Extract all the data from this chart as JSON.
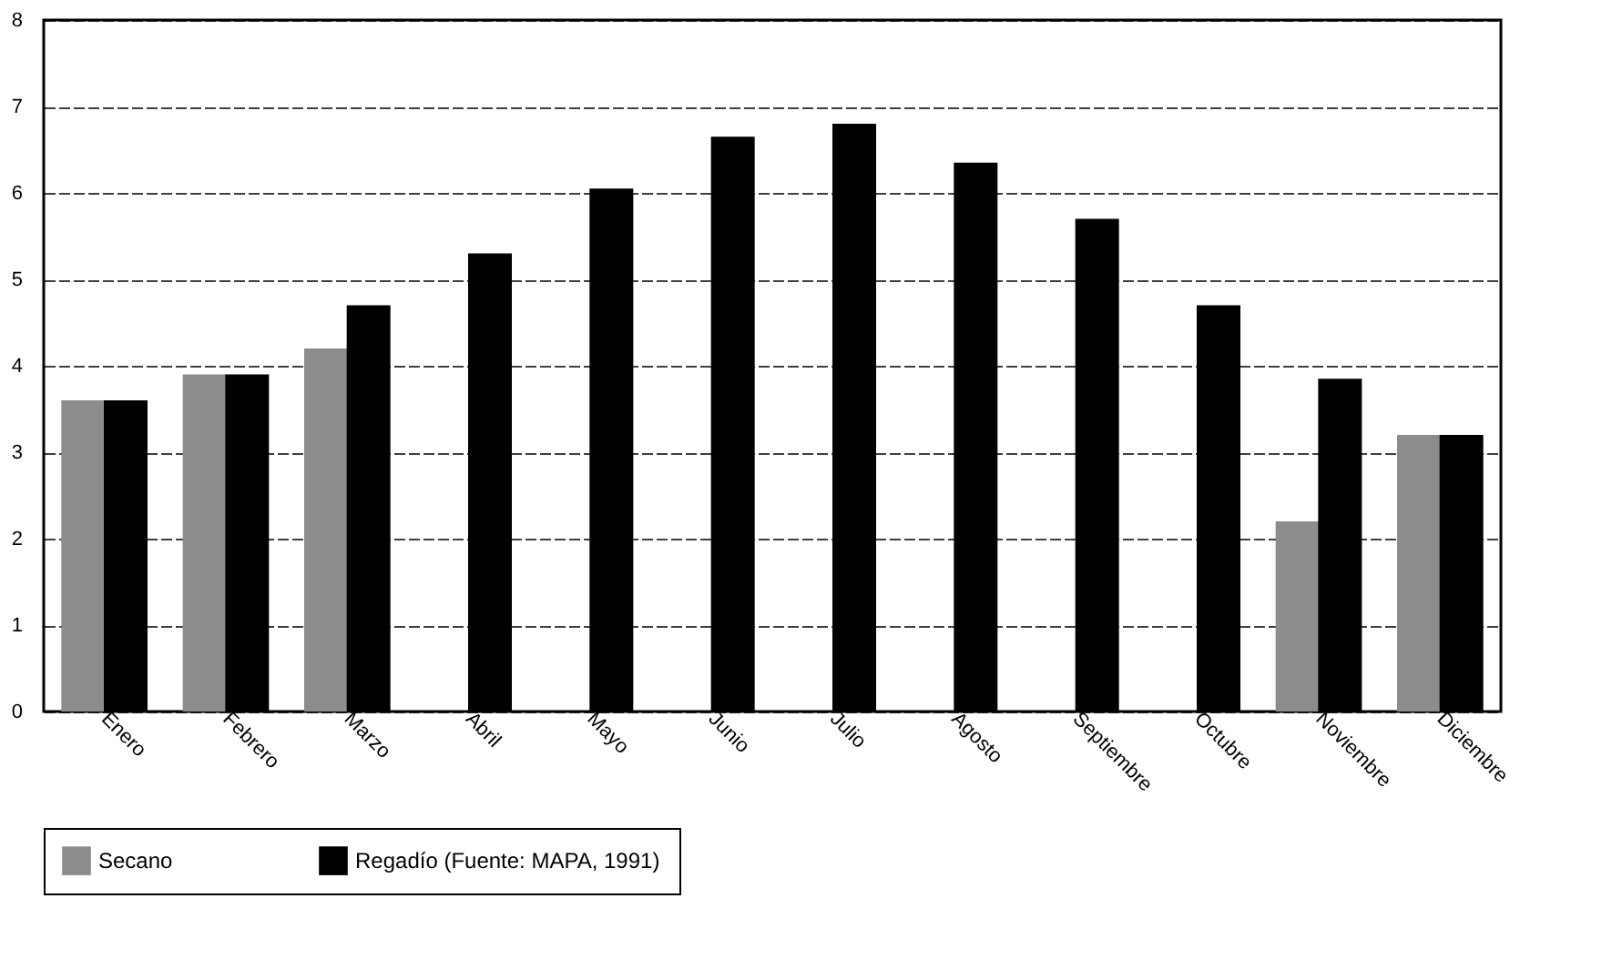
{
  "chart_data": {
    "type": "bar",
    "categories": [
      "Enero",
      "Febrero",
      "Marzo",
      "Abril",
      "Mayo",
      "Junio",
      "Julio",
      "Agosto",
      "Septiembre",
      "Octubre",
      "Noviembre",
      "Diciembre"
    ],
    "series": [
      {
        "name": "Secano",
        "color": "#8c8c8c",
        "values": [
          3.6,
          3.9,
          4.2,
          null,
          null,
          null,
          null,
          null,
          null,
          null,
          2.2,
          3.2
        ]
      },
      {
        "name": "Regadío (Fuente: MAPA, 1991)",
        "color": "#000000",
        "values": [
          3.6,
          3.9,
          4.7,
          5.3,
          6.05,
          6.65,
          6.8,
          6.35,
          5.7,
          4.7,
          3.85,
          3.2
        ]
      }
    ],
    "ylim": [
      0,
      8
    ],
    "yticks": [
      0,
      1,
      2,
      3,
      4,
      5,
      6,
      7,
      8
    ],
    "grid": "y",
    "legend": "bottom"
  }
}
